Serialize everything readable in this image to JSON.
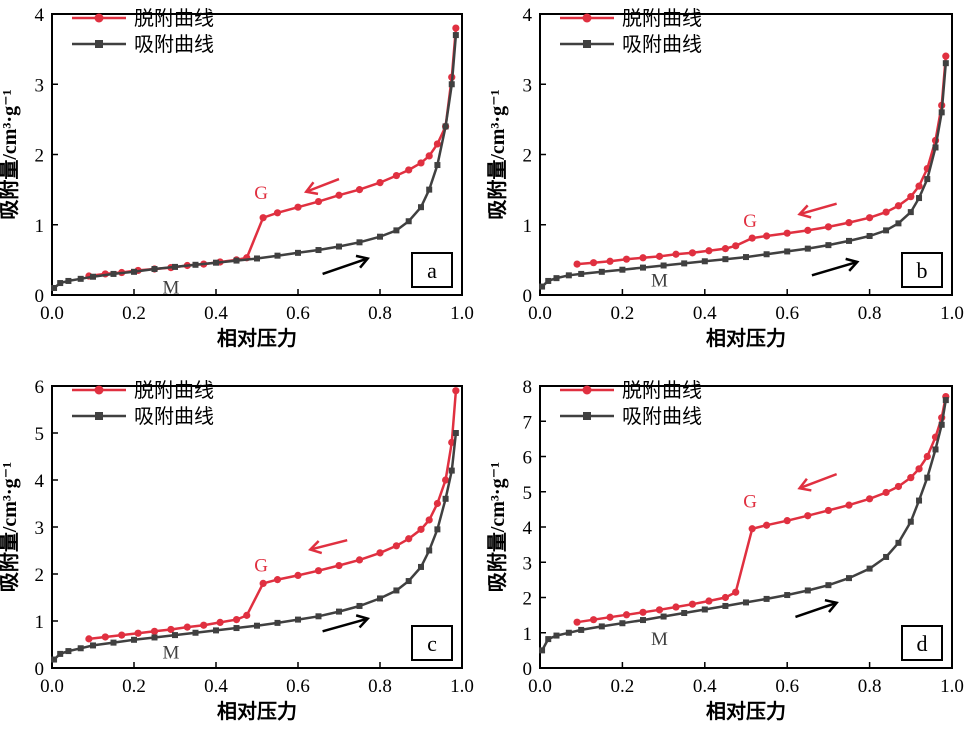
{
  "colors": {
    "desorption": "#e03040",
    "adsorption": "#404040",
    "arrow_red": "#e03040",
    "arrow_black": "#000000"
  },
  "legend": {
    "desorption_label": "脱附曲线",
    "adsorption_label": "吸附曲线"
  },
  "annotations": {
    "G": "G",
    "M": "M"
  },
  "chart_data": [
    {
      "type": "line",
      "panel": "a",
      "xlabel": "相对压力",
      "ylabel": "吸附量/cm³·g⁻¹",
      "xlim": [
        0.0,
        1.0
      ],
      "ylim": [
        0,
        4
      ],
      "xticks": [
        "0.0",
        "0.2",
        "0.4",
        "0.6",
        "0.8",
        "1.0"
      ],
      "yticks": [
        "0",
        "1",
        "2",
        "3",
        "4"
      ],
      "legend_position": "top-left",
      "series": [
        {
          "name": "脱附曲线",
          "x": [
            0.09,
            0.13,
            0.17,
            0.21,
            0.25,
            0.29,
            0.33,
            0.37,
            0.41,
            0.45,
            0.475,
            0.515,
            0.55,
            0.6,
            0.65,
            0.7,
            0.75,
            0.8,
            0.84,
            0.87,
            0.9,
            0.92,
            0.94,
            0.96,
            0.975,
            0.985
          ],
          "values": [
            0.27,
            0.3,
            0.32,
            0.35,
            0.37,
            0.39,
            0.42,
            0.44,
            0.47,
            0.5,
            0.53,
            1.1,
            1.17,
            1.25,
            1.33,
            1.42,
            1.5,
            1.6,
            1.7,
            1.78,
            1.88,
            1.98,
            2.15,
            2.4,
            3.1,
            3.8
          ]
        },
        {
          "name": "吸附曲线",
          "x": [
            0.005,
            0.02,
            0.04,
            0.07,
            0.1,
            0.15,
            0.2,
            0.25,
            0.3,
            0.35,
            0.4,
            0.45,
            0.5,
            0.55,
            0.6,
            0.65,
            0.7,
            0.75,
            0.8,
            0.84,
            0.87,
            0.9,
            0.92,
            0.94,
            0.96,
            0.975,
            0.985
          ],
          "values": [
            0.1,
            0.17,
            0.2,
            0.23,
            0.26,
            0.3,
            0.33,
            0.37,
            0.4,
            0.43,
            0.46,
            0.49,
            0.52,
            0.56,
            0.6,
            0.64,
            0.69,
            0.75,
            0.83,
            0.92,
            1.05,
            1.25,
            1.5,
            1.85,
            2.4,
            3.0,
            3.7
          ]
        }
      ]
    },
    {
      "type": "line",
      "panel": "b",
      "xlabel": "相对压力",
      "ylabel": "吸附量/cm³·g⁻¹",
      "xlim": [
        0.0,
        1.0
      ],
      "ylim": [
        0,
        4
      ],
      "xticks": [
        "0.0",
        "0.2",
        "0.4",
        "0.6",
        "0.8",
        "1.0"
      ],
      "yticks": [
        "0",
        "1",
        "2",
        "3",
        "4"
      ],
      "legend_position": "top-left",
      "series": [
        {
          "name": "脱附曲线",
          "x": [
            0.09,
            0.13,
            0.17,
            0.21,
            0.25,
            0.29,
            0.33,
            0.37,
            0.41,
            0.45,
            0.475,
            0.515,
            0.55,
            0.6,
            0.65,
            0.7,
            0.75,
            0.8,
            0.84,
            0.87,
            0.9,
            0.92,
            0.94,
            0.96,
            0.975,
            0.985
          ],
          "values": [
            0.44,
            0.46,
            0.48,
            0.51,
            0.53,
            0.55,
            0.58,
            0.6,
            0.63,
            0.66,
            0.7,
            0.81,
            0.84,
            0.88,
            0.92,
            0.97,
            1.03,
            1.1,
            1.18,
            1.27,
            1.4,
            1.55,
            1.8,
            2.2,
            2.7,
            3.4
          ]
        },
        {
          "name": "吸附曲线",
          "x": [
            0.005,
            0.02,
            0.04,
            0.07,
            0.1,
            0.15,
            0.2,
            0.25,
            0.3,
            0.35,
            0.4,
            0.45,
            0.5,
            0.55,
            0.6,
            0.65,
            0.7,
            0.75,
            0.8,
            0.84,
            0.87,
            0.9,
            0.92,
            0.94,
            0.96,
            0.975,
            0.985
          ],
          "values": [
            0.12,
            0.2,
            0.24,
            0.28,
            0.3,
            0.33,
            0.36,
            0.39,
            0.42,
            0.45,
            0.48,
            0.51,
            0.54,
            0.58,
            0.62,
            0.66,
            0.71,
            0.77,
            0.84,
            0.92,
            1.02,
            1.18,
            1.38,
            1.65,
            2.1,
            2.6,
            3.3
          ]
        }
      ]
    },
    {
      "type": "line",
      "panel": "c",
      "xlabel": "相对压力",
      "ylabel": "吸附量/cm³·g⁻¹",
      "xlim": [
        0.0,
        1.0
      ],
      "ylim": [
        0,
        6
      ],
      "xticks": [
        "0.0",
        "0.2",
        "0.4",
        "0.6",
        "0.8",
        "1.0"
      ],
      "yticks": [
        "0",
        "1",
        "2",
        "3",
        "4",
        "5",
        "6"
      ],
      "legend_position": "top-left",
      "series": [
        {
          "name": "脱附曲线",
          "x": [
            0.09,
            0.13,
            0.17,
            0.21,
            0.25,
            0.29,
            0.33,
            0.37,
            0.41,
            0.45,
            0.475,
            0.515,
            0.55,
            0.6,
            0.65,
            0.7,
            0.75,
            0.8,
            0.84,
            0.87,
            0.9,
            0.92,
            0.94,
            0.96,
            0.975,
            0.985
          ],
          "values": [
            0.62,
            0.66,
            0.7,
            0.74,
            0.78,
            0.82,
            0.87,
            0.91,
            0.97,
            1.03,
            1.12,
            1.8,
            1.88,
            1.97,
            2.07,
            2.18,
            2.3,
            2.45,
            2.6,
            2.75,
            2.95,
            3.15,
            3.5,
            4.0,
            4.8,
            5.9
          ]
        },
        {
          "name": "吸附曲线",
          "x": [
            0.005,
            0.02,
            0.04,
            0.07,
            0.1,
            0.15,
            0.2,
            0.25,
            0.3,
            0.35,
            0.4,
            0.45,
            0.5,
            0.55,
            0.6,
            0.65,
            0.7,
            0.75,
            0.8,
            0.84,
            0.87,
            0.9,
            0.92,
            0.94,
            0.96,
            0.975,
            0.985
          ],
          "values": [
            0.18,
            0.3,
            0.36,
            0.42,
            0.48,
            0.54,
            0.6,
            0.65,
            0.7,
            0.75,
            0.8,
            0.85,
            0.9,
            0.96,
            1.03,
            1.1,
            1.2,
            1.32,
            1.48,
            1.65,
            1.85,
            2.15,
            2.5,
            2.95,
            3.6,
            4.2,
            5.0
          ]
        }
      ]
    },
    {
      "type": "line",
      "panel": "d",
      "xlabel": "相对压力",
      "ylabel": "吸附量/cm³·g⁻¹",
      "xlim": [
        0.0,
        1.0
      ],
      "ylim": [
        0,
        8
      ],
      "xticks": [
        "0.0",
        "0.2",
        "0.4",
        "0.6",
        "0.8",
        "1.0"
      ],
      "yticks": [
        "0",
        "1",
        "2",
        "3",
        "4",
        "5",
        "6",
        "7",
        "8"
      ],
      "legend_position": "top-left",
      "series": [
        {
          "name": "脱附曲线",
          "x": [
            0.09,
            0.13,
            0.17,
            0.21,
            0.25,
            0.29,
            0.33,
            0.37,
            0.41,
            0.45,
            0.475,
            0.515,
            0.55,
            0.6,
            0.65,
            0.7,
            0.75,
            0.8,
            0.84,
            0.87,
            0.9,
            0.92,
            0.94,
            0.96,
            0.975,
            0.985
          ],
          "values": [
            1.3,
            1.37,
            1.44,
            1.51,
            1.58,
            1.65,
            1.73,
            1.81,
            1.9,
            2.0,
            2.15,
            3.95,
            4.05,
            4.18,
            4.32,
            4.47,
            4.62,
            4.8,
            4.98,
            5.15,
            5.4,
            5.65,
            6.0,
            6.55,
            7.1,
            7.7
          ]
        },
        {
          "name": "吸附曲线",
          "x": [
            0.005,
            0.02,
            0.04,
            0.07,
            0.1,
            0.15,
            0.2,
            0.25,
            0.3,
            0.35,
            0.4,
            0.45,
            0.5,
            0.55,
            0.6,
            0.65,
            0.7,
            0.75,
            0.8,
            0.84,
            0.87,
            0.9,
            0.92,
            0.94,
            0.96,
            0.975,
            0.985
          ],
          "values": [
            0.5,
            0.82,
            0.92,
            1.0,
            1.08,
            1.18,
            1.27,
            1.36,
            1.46,
            1.56,
            1.66,
            1.76,
            1.86,
            1.96,
            2.07,
            2.2,
            2.35,
            2.55,
            2.82,
            3.15,
            3.55,
            4.15,
            4.75,
            5.4,
            6.2,
            6.9,
            7.6
          ]
        }
      ]
    }
  ]
}
